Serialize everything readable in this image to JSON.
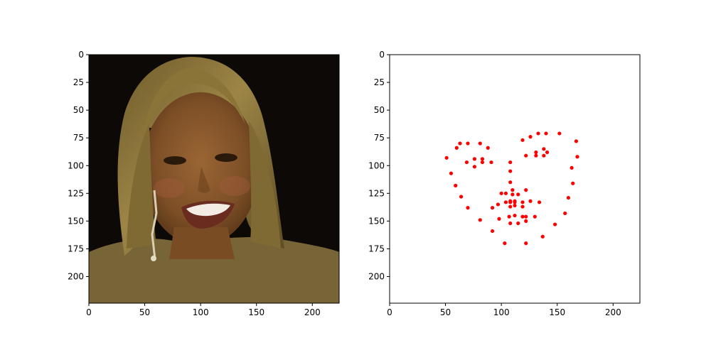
{
  "chart_data": [
    {
      "type": "image",
      "image": "face-photo",
      "image_description_colors": {
        "background": "#0d0a06",
        "hair": "#8a7236",
        "skin": "#8c5a2e",
        "top": "#7a6a40"
      },
      "xlim": [
        0,
        224
      ],
      "ylim": [
        224,
        0
      ],
      "xticks": [
        0,
        50,
        100,
        150,
        200
      ],
      "yticks": [
        0,
        25,
        50,
        75,
        100,
        125,
        150,
        175,
        200
      ],
      "grid": false
    },
    {
      "type": "scatter",
      "xlim": [
        0,
        224
      ],
      "ylim": [
        224,
        0
      ],
      "xticks": [
        0,
        50,
        100,
        150,
        200
      ],
      "yticks": [
        0,
        25,
        50,
        75,
        100,
        125,
        150,
        175,
        200
      ],
      "grid": false,
      "marker_color": "#ff0000",
      "points": [
        [
          51,
          93
        ],
        [
          55,
          107
        ],
        [
          59,
          118
        ],
        [
          64,
          128
        ],
        [
          70,
          138
        ],
        [
          81,
          149
        ],
        [
          92,
          159
        ],
        [
          103,
          170
        ],
        [
          122,
          170
        ],
        [
          137,
          164
        ],
        [
          148,
          153
        ],
        [
          157,
          143
        ],
        [
          160,
          129
        ],
        [
          164,
          116
        ],
        [
          163,
          102
        ],
        [
          168,
          92
        ],
        [
          167,
          78
        ],
        [
          60,
          84
        ],
        [
          63,
          80
        ],
        [
          70,
          80
        ],
        [
          81,
          80
        ],
        [
          88,
          84
        ],
        [
          119,
          77
        ],
        [
          126,
          74
        ],
        [
          133,
          71
        ],
        [
          140,
          71
        ],
        [
          152,
          71
        ],
        [
          108,
          97
        ],
        [
          108,
          105
        ],
        [
          108,
          115
        ],
        [
          110,
          122
        ],
        [
          110,
          126
        ],
        [
          100,
          125
        ],
        [
          104,
          125
        ],
        [
          115,
          126
        ],
        [
          122,
          122
        ],
        [
          69,
          97
        ],
        [
          76,
          94
        ],
        [
          83,
          94
        ],
        [
          91,
          97
        ],
        [
          83,
          97
        ],
        [
          76,
          101
        ],
        [
          122,
          91
        ],
        [
          131,
          88
        ],
        [
          138,
          85
        ],
        [
          141,
          88
        ],
        [
          138,
          91
        ],
        [
          131,
          91
        ],
        [
          92,
          138
        ],
        [
          97,
          135
        ],
        [
          104,
          133
        ],
        [
          108,
          132
        ],
        [
          112,
          132
        ],
        [
          126,
          132
        ],
        [
          134,
          133
        ],
        [
          130,
          146
        ],
        [
          122,
          150
        ],
        [
          115,
          152
        ],
        [
          108,
          152
        ],
        [
          98,
          148
        ],
        [
          107,
          146
        ],
        [
          112,
          145
        ],
        [
          119,
          146
        ],
        [
          122,
          146
        ],
        [
          108,
          137
        ],
        [
          112,
          136
        ],
        [
          119,
          137
        ],
        [
          108,
          133
        ],
        [
          112,
          133
        ],
        [
          119,
          133
        ]
      ]
    }
  ]
}
